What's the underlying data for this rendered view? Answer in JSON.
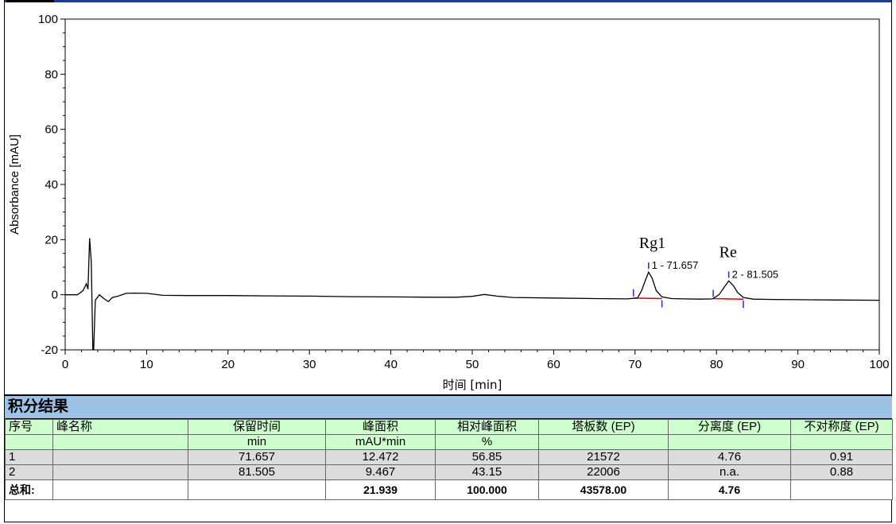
{
  "chart_data": {
    "type": "line",
    "xlabel": "时间 [min]",
    "ylabel": "Absorbance [mAU]",
    "xlim": [
      0,
      100
    ],
    "ylim": [
      -20,
      100
    ],
    "x_ticks": [
      0,
      10,
      20,
      30,
      40,
      50,
      60,
      70,
      80,
      90,
      100
    ],
    "y_ticks": [
      -20,
      0,
      20,
      40,
      60,
      80,
      100
    ],
    "series": [
      {
        "x": [
          0,
          1.5,
          2.2,
          2.6,
          2.8,
          3.0,
          3.2,
          3.4,
          3.5,
          3.7,
          4.2,
          4.8,
          5.3,
          5.8,
          6.5,
          7.5,
          8.5,
          10,
          12,
          15,
          20,
          25,
          30,
          35,
          40,
          45,
          48,
          50,
          51.5,
          53,
          55,
          60,
          65,
          69,
          70.3,
          70.8,
          71.3,
          71.657,
          72.1,
          72.6,
          73.3,
          74.5,
          76,
          78,
          79.5,
          80.3,
          80.9,
          81.505,
          82.1,
          82.6,
          83.3,
          84.5,
          87,
          90,
          95,
          100
        ],
        "y": [
          0,
          0,
          1.5,
          4,
          2,
          20.5,
          12,
          -20,
          -20,
          -2,
          0,
          -1.5,
          -2.5,
          -1,
          -0.5,
          0.5,
          0.6,
          0.5,
          -0.2,
          -0.3,
          -0.3,
          -0.4,
          -0.5,
          -0.7,
          -0.8,
          -0.9,
          -0.9,
          -0.6,
          0.1,
          -0.5,
          -1,
          -1.2,
          -1.4,
          -1.5,
          -1.2,
          1.5,
          5.5,
          8.2,
          6,
          1.5,
          -0.8,
          -1.4,
          -1.5,
          -1.6,
          -1.5,
          0,
          2.5,
          5,
          3.2,
          0.8,
          -1,
          -1.6,
          -1.7,
          -1.8,
          -1.9,
          -2
        ]
      }
    ],
    "peaks": [
      {
        "name": "Rg1",
        "label": "1 - 71.657",
        "rt": 71.657,
        "apex": 8.2,
        "start": 69.8,
        "end": 73.3,
        "base_start": -1.2,
        "base_end": -1.4
      },
      {
        "name": "Re",
        "label": "2 - 81.505",
        "rt": 81.505,
        "apex": 5.0,
        "start": 79.6,
        "end": 83.3,
        "base_start": -1.4,
        "base_end": -1.6
      }
    ]
  },
  "results": {
    "title": "积分结果",
    "header1": [
      "序号",
      "峰名称",
      "保留时间",
      "峰面积",
      "相对峰面积",
      "塔板数 (EP)",
      "分离度 (EP)",
      "不对称度 (EP)"
    ],
    "header2": [
      "",
      "",
      "min",
      "mAU*min",
      "%",
      "",
      "",
      ""
    ],
    "rows": [
      [
        "1",
        "",
        "71.657",
        "12.472",
        "56.85",
        "21572",
        "4.76",
        "0.91"
      ],
      [
        "2",
        "",
        "81.505",
        "9.467",
        "43.15",
        "22006",
        "n.a.",
        "0.88"
      ]
    ],
    "total": [
      "总和:",
      "",
      "",
      "21.939",
      "100.000",
      "43578.00",
      "4.76",
      ""
    ]
  }
}
